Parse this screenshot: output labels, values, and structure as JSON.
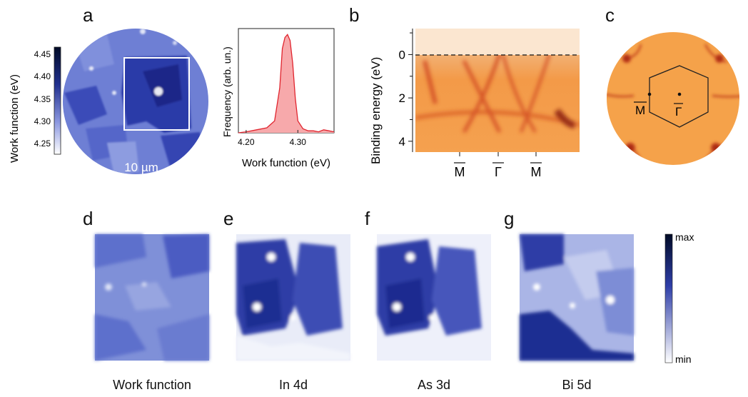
{
  "panels": {
    "a": "a",
    "b": "b",
    "c": "c",
    "d": "d",
    "e": "e",
    "f": "f",
    "g": "g"
  },
  "panel_a": {
    "colorbar_label": "Work function (eV)",
    "colorbar_ticks": [
      "4.45",
      "4.40",
      "4.35",
      "4.30",
      "4.25"
    ],
    "scalebar": "10 µm",
    "colors": {
      "dark": "#0b1a55",
      "mid": "#3a4fc0",
      "light": "#ffffff"
    }
  },
  "chart_data": [
    {
      "type": "area",
      "title": "",
      "xlabel": "Work function (eV)",
      "ylabel": "Frequency (arb. un.)",
      "xticks": [
        "4.20",
        "4.30"
      ],
      "xlim": [
        4.185,
        4.37
      ],
      "ylim": [
        0,
        1.05
      ],
      "x": [
        4.185,
        4.2,
        4.22,
        4.24,
        4.255,
        4.265,
        4.27,
        4.275,
        4.28,
        4.285,
        4.29,
        4.295,
        4.3,
        4.31,
        4.32,
        4.33,
        4.34,
        4.35,
        4.36,
        4.37
      ],
      "y": [
        0.0,
        0.01,
        0.03,
        0.05,
        0.12,
        0.45,
        0.85,
        0.96,
        0.99,
        0.93,
        0.7,
        0.35,
        0.12,
        0.04,
        0.02,
        0.02,
        0.01,
        0.03,
        0.02,
        0.01
      ],
      "colors": {
        "fill": "#f7a9ab",
        "line": "#e0242e"
      }
    },
    {
      "type": "heatmap",
      "title": "",
      "ylabel": "Binding energy (eV)",
      "yticks": [
        "0",
        "2",
        "4"
      ],
      "ylim": [
        -1.2,
        4.5
      ],
      "xticks": [
        "M",
        "Γ",
        "M"
      ],
      "fermi_level": 0,
      "colors": {
        "base": "#f5a650",
        "dark": "#b8321a",
        "above_fermi": "#fbe6d0"
      }
    }
  ],
  "panel_c": {
    "labels": [
      "M",
      "Γ"
    ],
    "colors": {
      "disk": "#f5a24a",
      "feature": "#c2401f",
      "hexagon": "#222222"
    }
  },
  "maps": {
    "d_caption": "Work function",
    "e_caption": "In 4d",
    "f_caption": "As 3d",
    "g_caption": "Bi 5d"
  },
  "intensity_bar": {
    "max": "max",
    "min": "min"
  }
}
